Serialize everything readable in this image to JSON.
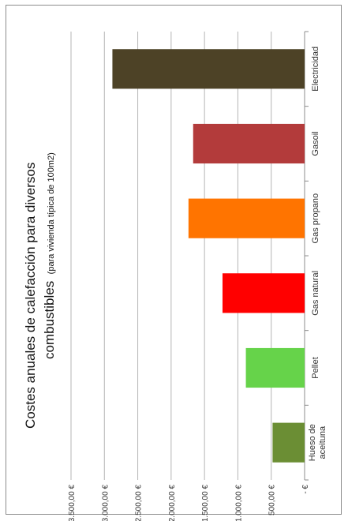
{
  "chart_data": {
    "type": "bar",
    "orientation": "horizontal",
    "display_rotation": "rotated-90-ccw",
    "title": "Costes anuales de calefacción para diversos",
    "title_line2": "combustibles",
    "subtitle": "(para vivienda típica de 100m2)",
    "categories": [
      "Hueso de aceituna",
      "Pellet",
      "Gas natural",
      "Gas propano",
      "Gasoil",
      "Electricidad"
    ],
    "category_labels_display": [
      [
        "Hueso de",
        "aceituna"
      ],
      [
        "Pellet"
      ],
      [
        "Gas natural"
      ],
      [
        "Gas propano"
      ],
      [
        "Gasoil"
      ],
      [
        "Electricidad"
      ]
    ],
    "values": [
      480,
      880,
      1230,
      1740,
      1670,
      2880
    ],
    "colors": [
      "#6b8e34",
      "#66d34a",
      "#ff0000",
      "#ff7400",
      "#b33b3b",
      "#4d4226"
    ],
    "ylim": [
      0,
      3500
    ],
    "ticks": [
      0,
      500,
      1000,
      1500,
      2000,
      2500,
      3000,
      3500
    ],
    "tick_labels": [
      "-   €",
      "500,00 €",
      "1.000,00 €",
      "1.500,00 €",
      "2.000,00 €",
      "2.500,00 €",
      "3.000,00 €",
      "3.500,00 €"
    ],
    "grid": true,
    "legend": "none"
  }
}
